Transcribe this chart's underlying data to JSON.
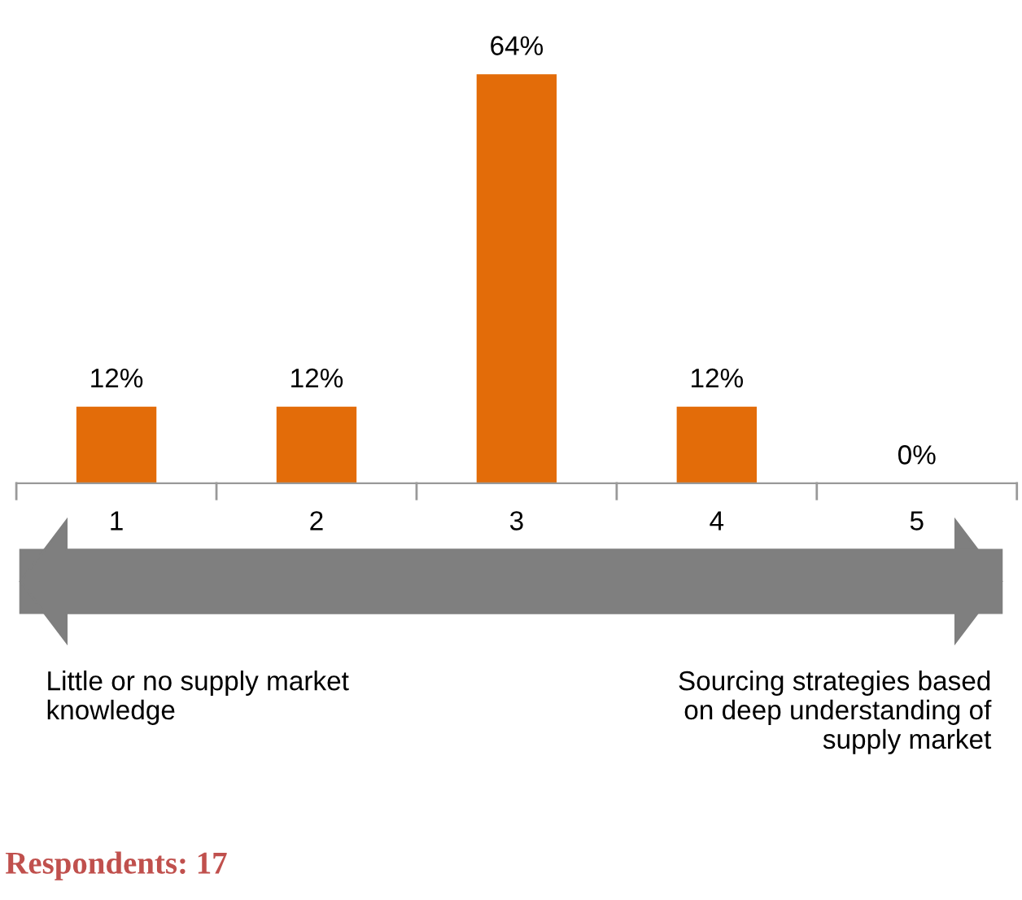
{
  "chart_data": {
    "type": "bar",
    "categories": [
      "1",
      "2",
      "3",
      "4",
      "5"
    ],
    "values": [
      12,
      12,
      64,
      12,
      0
    ],
    "value_labels": [
      "12%",
      "12%",
      "64%",
      "12%",
      "0%"
    ],
    "color": "#e36c09",
    "grid": false,
    "annotations": [
      "Little or no supply market knowledge",
      "Sourcing strategies based on deep understanding of supply market",
      "Respondents: 17"
    ]
  }
}
